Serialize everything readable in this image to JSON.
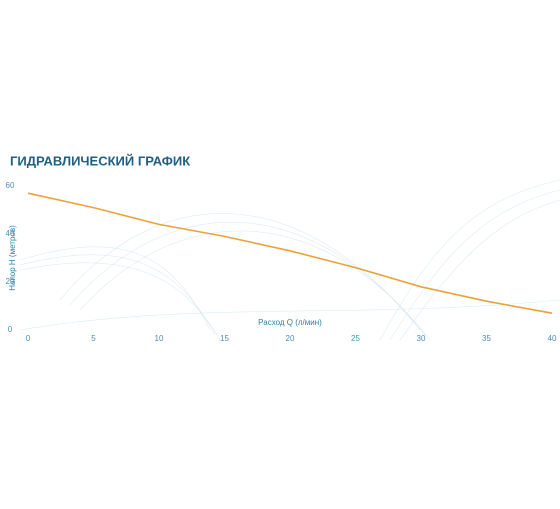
{
  "chart_data": {
    "type": "line",
    "title": "ГИДРАВЛИЧЕСКИЙ ГРАФИК",
    "x_label": "Расход Q (л/мин)",
    "y_label": "Напор H (метров)",
    "x": [
      0,
      5,
      10,
      15,
      20,
      25,
      30,
      35,
      40
    ],
    "series": [
      {
        "color": "#e8a33a",
        "values": [
          57,
          51,
          44,
          39,
          33,
          26,
          18,
          12,
          7
        ]
      }
    ],
    "xlim": [
      0,
      40
    ],
    "xticks": [
      0,
      5,
      10,
      15,
      20,
      25,
      30,
      35,
      40
    ],
    "ylim": [
      0,
      60
    ],
    "yticks": [
      0,
      20,
      40,
      60
    ],
    "grid": false
  }
}
